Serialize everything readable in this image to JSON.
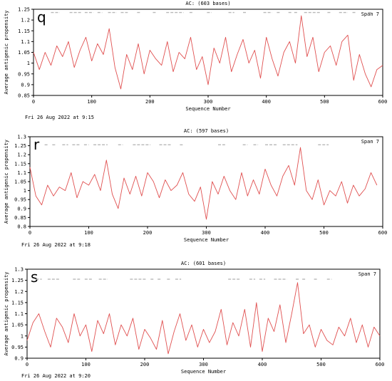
{
  "chart_data": [
    {
      "type": "line",
      "panel_letter": "q",
      "title": "AC:  (603 bases)",
      "xlabel": "Sequence Number",
      "ylabel": "Average antigenic propensity",
      "xlim": [
        0,
        600
      ],
      "ylim": [
        0.85,
        1.25
      ],
      "xticks": [
        "0",
        "100",
        "200",
        "300",
        "400",
        "500",
        "600"
      ],
      "yticks": [
        "0.85",
        "0.9",
        "0.95",
        "1",
        "1.05",
        "1.1",
        "1.15",
        "1.2",
        "1.25"
      ],
      "legend": "Span 7",
      "footer": "Fri 26 Aug 2022 at 9:15",
      "line_color": "#e05050",
      "segment_color": "#b8b8b8",
      "threshold_y": 1.235,
      "segments": [
        [
          30,
          45
        ],
        [
          62,
          82
        ],
        [
          88,
          103
        ],
        [
          110,
          118
        ],
        [
          128,
          143
        ],
        [
          150,
          162
        ],
        [
          178,
          183
        ],
        [
          205,
          210
        ],
        [
          228,
          258
        ],
        [
          268,
          273
        ],
        [
          298,
          306
        ],
        [
          335,
          345
        ],
        [
          360,
          366
        ],
        [
          395,
          410
        ],
        [
          418,
          425
        ],
        [
          438,
          443
        ],
        [
          448,
          455
        ],
        [
          465,
          493
        ],
        [
          505,
          512
        ],
        [
          525,
          540
        ],
        [
          548,
          555
        ],
        [
          575,
          582
        ]
      ],
      "series": [
        {
          "x": [
            0,
            10,
            20,
            30,
            40,
            50,
            60,
            70,
            80,
            90,
            100,
            110,
            120,
            130,
            140,
            150,
            160,
            170,
            180,
            190,
            200,
            210,
            220,
            230,
            240,
            250,
            260,
            270,
            280,
            290,
            300,
            310,
            320,
            330,
            340,
            350,
            360,
            370,
            380,
            390,
            400,
            410,
            420,
            430,
            440,
            450,
            460,
            470,
            480,
            490,
            500,
            510,
            520,
            530,
            540,
            550,
            560,
            570,
            580,
            590,
            600
          ],
          "values": [
            1.05,
            0.97,
            1.05,
            0.99,
            1.08,
            1.03,
            1.1,
            0.98,
            1.06,
            1.12,
            1.01,
            1.09,
            1.04,
            1.16,
            0.98,
            0.88,
            1.04,
            0.97,
            1.09,
            0.95,
            1.06,
            1.02,
            0.99,
            1.1,
            0.96,
            1.05,
            1.02,
            1.12,
            0.97,
            1.03,
            0.9,
            1.07,
            1.0,
            1.12,
            0.96,
            1.04,
            1.11,
            1.0,
            1.06,
            0.93,
            1.12,
            1.02,
            0.94,
            1.05,
            1.1,
            1.0,
            1.22,
            1.03,
            1.12,
            0.96,
            1.05,
            1.08,
            0.99,
            1.1,
            1.13,
            0.92,
            1.04,
            0.95,
            0.89,
            0.97,
            0.99
          ]
        }
      ]
    },
    {
      "type": "line",
      "panel_letter": "r",
      "title": "AC:  (597 bases)",
      "xlabel": "Sequence Number",
      "ylabel": "Average antigenic propensity",
      "xlim": [
        0,
        600
      ],
      "ylim": [
        0.8,
        1.3
      ],
      "xticks": [
        "0",
        "100",
        "200",
        "300",
        "400",
        "500",
        "600"
      ],
      "yticks": [
        "0.8",
        "0.85",
        "0.9",
        "0.95",
        "1",
        "1.05",
        "1.1",
        "1.15",
        "1.2",
        "1.25",
        "1.3"
      ],
      "legend": "Span 7",
      "footer": "Fri 26 Aug 2022 at 9:18",
      "line_color": "#e05050",
      "segment_color": "#b8b8b8",
      "threshold_y": 1.255,
      "segments": [
        [
          25,
          32
        ],
        [
          38,
          44
        ],
        [
          55,
          65
        ],
        [
          72,
          85
        ],
        [
          92,
          100
        ],
        [
          108,
          132
        ],
        [
          150,
          158
        ],
        [
          175,
          205
        ],
        [
          220,
          240
        ],
        [
          255,
          262
        ],
        [
          320,
          332
        ],
        [
          362,
          370
        ],
        [
          380,
          388
        ],
        [
          400,
          420
        ],
        [
          430,
          455
        ],
        [
          490,
          508
        ]
      ],
      "series": [
        {
          "x": [
            0,
            10,
            20,
            30,
            40,
            50,
            60,
            70,
            80,
            90,
            100,
            110,
            120,
            130,
            140,
            150,
            160,
            170,
            180,
            190,
            200,
            210,
            220,
            230,
            240,
            250,
            260,
            270,
            280,
            290,
            300,
            310,
            320,
            330,
            340,
            350,
            360,
            370,
            380,
            390,
            400,
            410,
            420,
            430,
            440,
            450,
            460,
            470,
            480,
            490,
            500,
            510,
            520,
            530,
            540,
            550,
            560,
            570,
            580,
            590
          ],
          "values": [
            1.13,
            0.97,
            0.92,
            1.03,
            0.97,
            1.02,
            1.0,
            1.1,
            0.96,
            1.05,
            1.03,
            1.09,
            1.0,
            1.17,
            0.98,
            0.9,
            1.07,
            0.98,
            1.08,
            0.97,
            1.1,
            1.05,
            0.96,
            1.06,
            1.0,
            1.03,
            1.1,
            0.98,
            0.94,
            1.02,
            0.84,
            1.05,
            0.98,
            1.08,
            1.0,
            0.95,
            1.1,
            0.97,
            1.06,
            0.98,
            1.12,
            1.03,
            0.97,
            1.08,
            1.14,
            1.03,
            1.24,
            1.0,
            0.95,
            1.06,
            0.92,
            1.0,
            0.97,
            1.05,
            0.93,
            1.03,
            0.97,
            1.01,
            1.1,
            1.03
          ]
        }
      ]
    },
    {
      "type": "line",
      "panel_letter": "s",
      "title": "AC:  (601 bases)",
      "xlabel": "Sequence Number",
      "ylabel": "Average antigenic propensity",
      "xlim": [
        0,
        600
      ],
      "ylim": [
        0.9,
        1.3
      ],
      "xticks": [
        "0",
        "100",
        "200",
        "300",
        "400",
        "500",
        "600"
      ],
      "yticks": [
        "0.9",
        "0.95",
        "1",
        "1.05",
        "1.1",
        "1.15",
        "1.2",
        "1.25",
        "1.3"
      ],
      "legend": "Span 7",
      "footer": "Fri 26 Aug 2022 at 9:20",
      "line_color": "#e05050",
      "segment_color": "#b8b8b8",
      "threshold_y": 1.255,
      "segments": [
        [
          15,
          25
        ],
        [
          35,
          55
        ],
        [
          78,
          90
        ],
        [
          98,
          112
        ],
        [
          122,
          137
        ],
        [
          175,
          202
        ],
        [
          210,
          215
        ],
        [
          222,
          228
        ],
        [
          238,
          243
        ],
        [
          252,
          262
        ],
        [
          342,
          362
        ],
        [
          378,
          388
        ],
        [
          395,
          405
        ],
        [
          420,
          442
        ],
        [
          457,
          463
        ],
        [
          468,
          473
        ],
        [
          488,
          493
        ],
        [
          510,
          518
        ]
      ],
      "series": [
        {
          "x": [
            0,
            10,
            20,
            30,
            40,
            50,
            60,
            70,
            80,
            90,
            100,
            110,
            120,
            130,
            140,
            150,
            160,
            170,
            180,
            190,
            200,
            210,
            220,
            230,
            240,
            250,
            260,
            270,
            280,
            290,
            300,
            310,
            320,
            330,
            340,
            350,
            360,
            370,
            380,
            390,
            400,
            410,
            420,
            430,
            440,
            450,
            460,
            470,
            480,
            490,
            500,
            510,
            520,
            530,
            540,
            550,
            560,
            570,
            580,
            590,
            600
          ],
          "values": [
            0.98,
            1.06,
            1.1,
            1.02,
            0.95,
            1.08,
            1.04,
            0.97,
            1.1,
            1.0,
            1.05,
            0.93,
            1.07,
            1.01,
            1.1,
            0.96,
            1.05,
            1.0,
            1.08,
            0.94,
            1.03,
            0.99,
            0.94,
            1.07,
            0.92,
            1.02,
            1.1,
            0.98,
            1.05,
            0.95,
            1.03,
            0.97,
            1.02,
            1.12,
            0.96,
            1.06,
            1.0,
            1.12,
            0.95,
            1.15,
            0.93,
            1.08,
            1.02,
            1.14,
            0.97,
            1.1,
            1.24,
            1.01,
            1.05,
            0.95,
            1.03,
            0.98,
            0.96,
            1.04,
            1.0,
            1.08,
            0.97,
            1.05,
            0.95,
            1.04,
            1.0
          ]
        }
      ]
    }
  ]
}
